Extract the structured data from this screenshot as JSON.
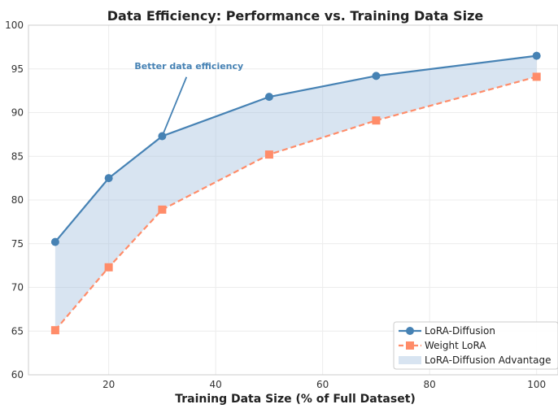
{
  "chart_data": {
    "type": "line",
    "title": "Data Efficiency: Performance vs. Training Data Size",
    "xlabel": "Training Data Size (% of Full Dataset)",
    "ylabel": "",
    "xlim": [
      5,
      104
    ],
    "ylim": [
      60,
      100
    ],
    "xticks": [
      20,
      40,
      60,
      80,
      100
    ],
    "yticks": [
      60,
      65,
      70,
      75,
      80,
      85,
      90,
      95,
      100
    ],
    "grid": true,
    "legend_position": "bottom-right",
    "x": [
      10,
      20,
      30,
      50,
      70,
      100
    ],
    "series": [
      {
        "name": "LoRA-Diffusion",
        "values": [
          75.2,
          82.5,
          87.3,
          91.8,
          94.2,
          96.5
        ],
        "color": "#4682b4",
        "marker": "circle",
        "linestyle": "solid"
      },
      {
        "name": "Weight LoRA",
        "values": [
          65.1,
          72.3,
          78.9,
          85.2,
          89.1,
          94.1
        ],
        "color": "#ff8c69",
        "marker": "square",
        "linestyle": "dashed"
      }
    ],
    "fill": {
      "name": "LoRA-Diffusion Advantage",
      "between": [
        "LoRA-Diffusion",
        "Weight LoRA"
      ],
      "color": "#a9c4e0"
    },
    "annotations": [
      {
        "text": "Better data efficiency",
        "point": [
          30,
          87.3
        ],
        "text_pos": [
          35,
          95
        ],
        "color": "#4682b4"
      }
    ]
  }
}
